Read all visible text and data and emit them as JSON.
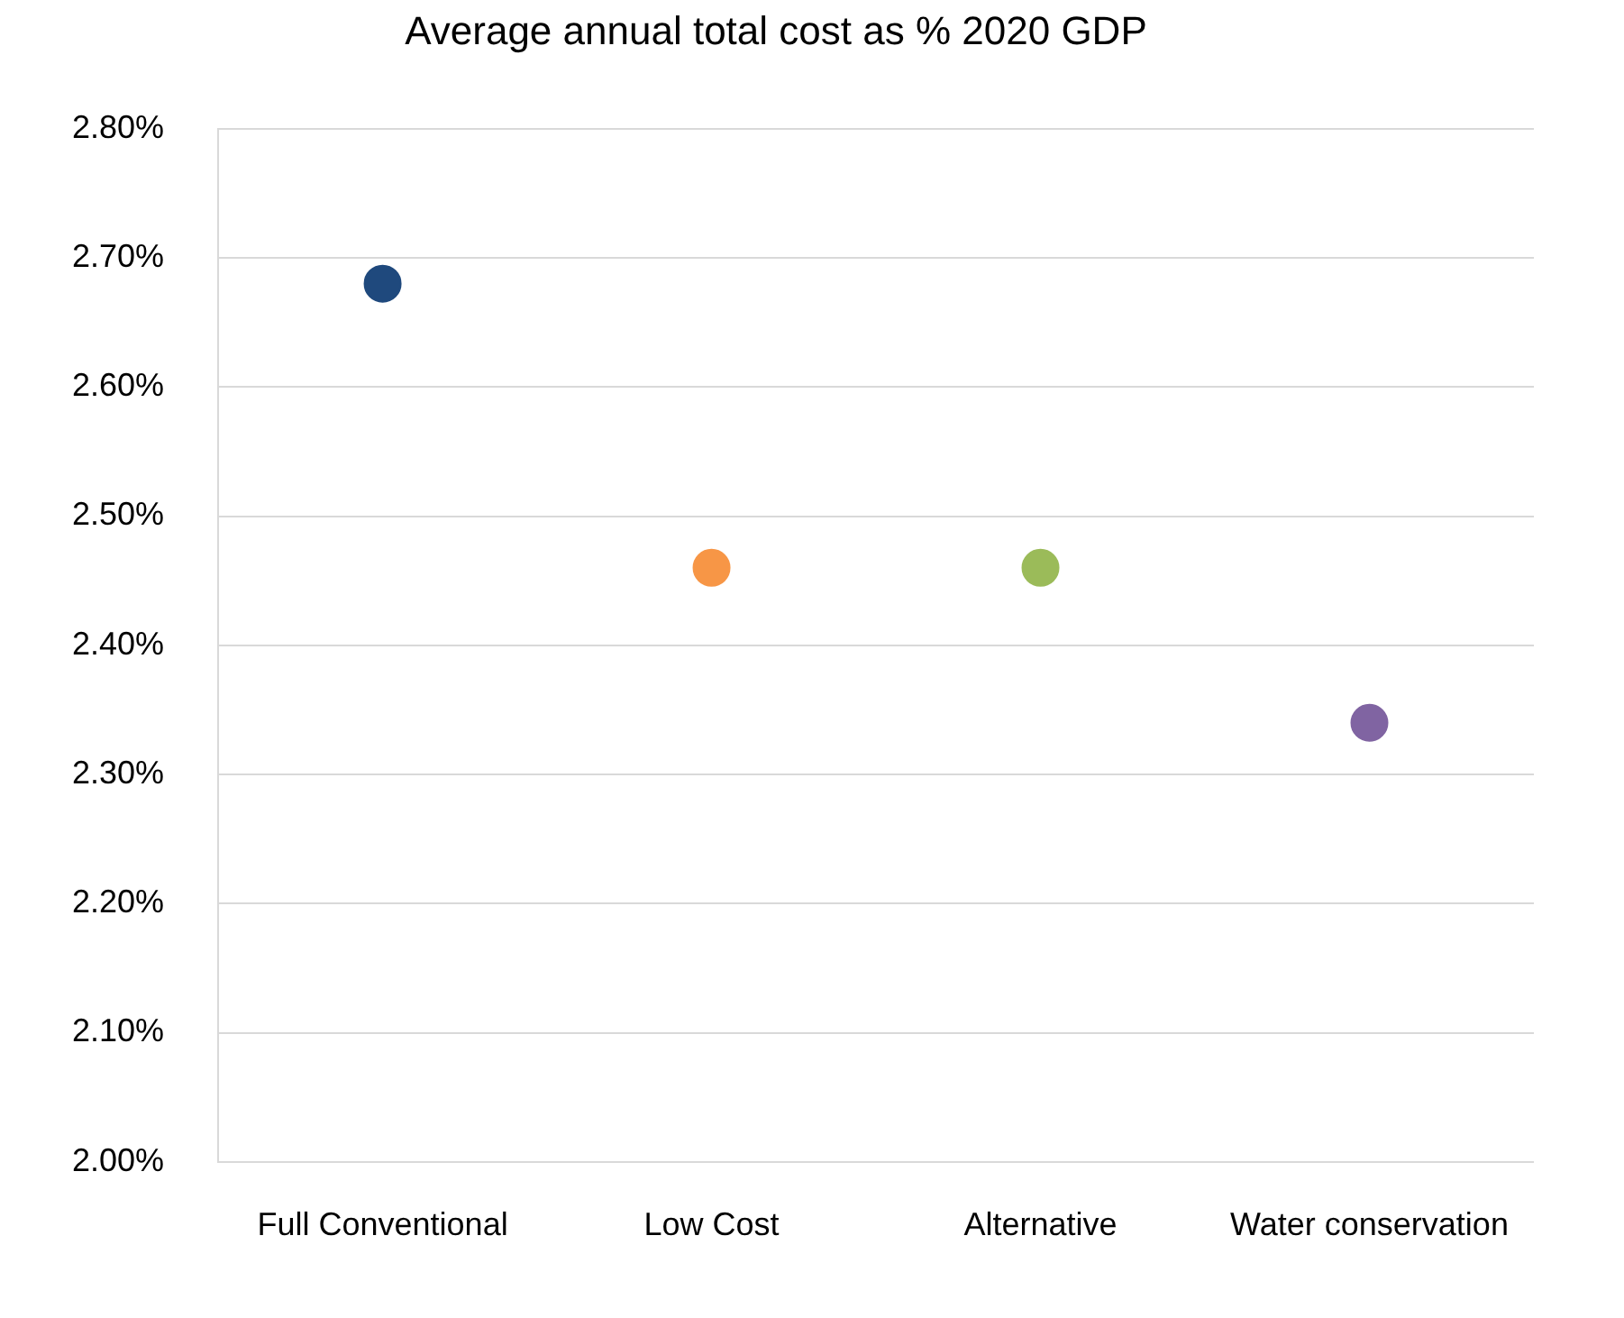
{
  "chart_data": {
    "type": "scatter",
    "title": "Average annual total cost as % 2020 GDP",
    "categories": [
      "Full Conventional",
      "Low Cost",
      "Alternative",
      "Water conservation"
    ],
    "values": [
      2.68,
      2.46,
      2.46,
      2.34
    ],
    "colors": [
      "#1f497d",
      "#f79646",
      "#9bbb59",
      "#8064a2"
    ],
    "marker": "circle",
    "ylim": [
      2.0,
      2.8
    ],
    "yticks": [
      {
        "value": 2.0,
        "label": "2.00%"
      },
      {
        "value": 2.1,
        "label": "2.10%"
      },
      {
        "value": 2.2,
        "label": "2.20%"
      },
      {
        "value": 2.3,
        "label": "2.30%"
      },
      {
        "value": 2.4,
        "label": "2.40%"
      },
      {
        "value": 2.5,
        "label": "2.50%"
      },
      {
        "value": 2.6,
        "label": "2.60%"
      },
      {
        "value": 2.7,
        "label": "2.70%"
      },
      {
        "value": 2.8,
        "label": "2.80%"
      }
    ],
    "grid": "y",
    "legend": false
  }
}
